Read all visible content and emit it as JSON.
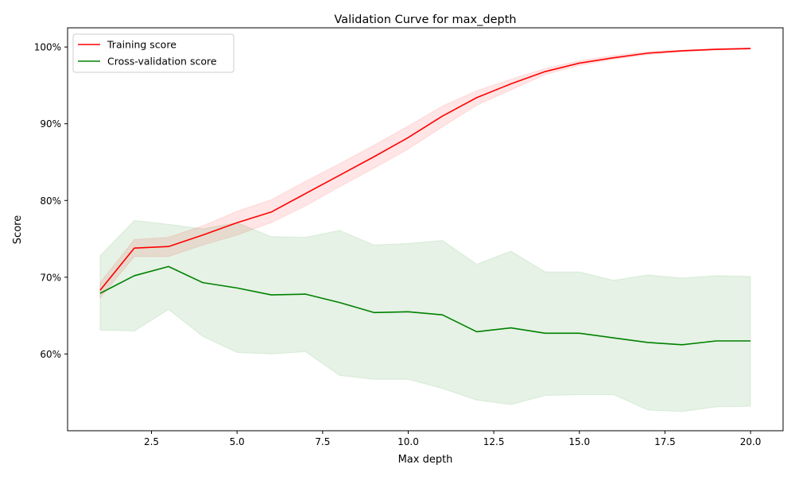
{
  "chart_data": {
    "type": "line",
    "title": "Validation Curve for max_depth",
    "xlabel": "Max depth",
    "ylabel": "Score",
    "xlim": [
      0.05,
      20.95
    ],
    "ylim": [
      0.5,
      1.025
    ],
    "xticks": [
      2.5,
      5.0,
      7.5,
      10.0,
      12.5,
      15.0,
      17.5,
      20.0
    ],
    "xtick_labels": [
      "2.5",
      "5.0",
      "7.5",
      "10.0",
      "12.5",
      "15.0",
      "17.5",
      "20.0"
    ],
    "yticks": [
      0.6,
      0.7,
      0.8,
      0.9,
      1.0
    ],
    "ytick_labels": [
      "60%",
      "70%",
      "80%",
      "90%",
      "100%"
    ],
    "grid": false,
    "legend_position": "top-left",
    "x": [
      1,
      2,
      3,
      4,
      5,
      6,
      7,
      8,
      9,
      10,
      11,
      12,
      13,
      14,
      15,
      16,
      17,
      18,
      19,
      20
    ],
    "series": [
      {
        "name": "Training score",
        "color": "#ff0000",
        "band_color": "#ff0000",
        "values": [
          0.683,
          0.738,
          0.74,
          0.755,
          0.771,
          0.785,
          0.809,
          0.833,
          0.857,
          0.882,
          0.91,
          0.934,
          0.952,
          0.968,
          0.979,
          0.986,
          0.992,
          0.995,
          0.997,
          0.998
        ],
        "band_low": [
          0.673,
          0.727,
          0.727,
          0.742,
          0.755,
          0.771,
          0.793,
          0.818,
          0.842,
          0.867,
          0.896,
          0.924,
          0.944,
          0.964,
          0.976,
          0.984,
          0.99,
          0.994,
          0.996,
          0.997
        ],
        "band_high": [
          0.693,
          0.749,
          0.752,
          0.767,
          0.786,
          0.801,
          0.825,
          0.848,
          0.872,
          0.897,
          0.923,
          0.943,
          0.958,
          0.972,
          0.982,
          0.989,
          0.994,
          0.996,
          0.998,
          0.999
        ]
      },
      {
        "name": "Cross-validation score",
        "color": "#008000",
        "band_color": "#008000",
        "values": [
          0.679,
          0.702,
          0.714,
          0.693,
          0.686,
          0.677,
          0.678,
          0.667,
          0.654,
          0.655,
          0.651,
          0.629,
          0.634,
          0.627,
          0.627,
          0.621,
          0.615,
          0.612,
          0.617,
          0.617
        ],
        "band_low": [
          0.631,
          0.63,
          0.658,
          0.623,
          0.602,
          0.6,
          0.603,
          0.572,
          0.567,
          0.567,
          0.555,
          0.54,
          0.534,
          0.546,
          0.547,
          0.547,
          0.527,
          0.525,
          0.531,
          0.532
        ],
        "band_high": [
          0.728,
          0.774,
          0.769,
          0.763,
          0.771,
          0.753,
          0.752,
          0.761,
          0.742,
          0.744,
          0.748,
          0.717,
          0.734,
          0.707,
          0.707,
          0.696,
          0.703,
          0.699,
          0.702,
          0.701
        ]
      }
    ]
  }
}
